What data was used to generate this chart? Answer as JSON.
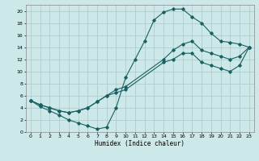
{
  "xlabel": "Humidex (Indice chaleur)",
  "bg_color": "#cce8e8",
  "grid_color": "#b0cccc",
  "line_color": "#1a6060",
  "xlim": [
    -0.5,
    23.5
  ],
  "ylim": [
    0,
    21
  ],
  "xticks": [
    0,
    1,
    2,
    3,
    4,
    5,
    6,
    7,
    8,
    9,
    10,
    11,
    12,
    13,
    14,
    15,
    16,
    17,
    18,
    19,
    20,
    21,
    22,
    23
  ],
  "yticks": [
    0,
    2,
    4,
    6,
    8,
    10,
    12,
    14,
    16,
    18,
    20
  ],
  "line1_x": [
    0,
    1,
    2,
    3,
    4,
    5,
    6,
    7,
    8,
    9,
    10,
    11,
    12,
    13,
    14,
    15,
    16,
    17,
    18,
    19,
    20,
    21,
    22,
    23
  ],
  "line1_y": [
    5.2,
    4.2,
    3.5,
    2.8,
    2.0,
    1.5,
    1.0,
    0.5,
    0.8,
    4.0,
    9.0,
    12.0,
    15.0,
    18.5,
    19.8,
    20.3,
    20.3,
    19.0,
    18.0,
    16.3,
    15.0,
    14.8,
    14.5,
    14.0
  ],
  "line2_x": [
    0,
    1,
    2,
    3,
    4,
    5,
    6,
    7,
    8,
    9,
    10,
    14,
    15,
    16,
    17,
    18,
    19,
    20,
    21,
    22,
    23
  ],
  "line2_y": [
    5.2,
    4.5,
    4.0,
    3.5,
    3.2,
    3.5,
    4.0,
    5.0,
    6.0,
    7.0,
    7.5,
    12.0,
    13.5,
    14.5,
    15.0,
    13.5,
    13.0,
    12.5,
    12.0,
    12.5,
    14.0
  ],
  "line3_x": [
    0,
    1,
    2,
    3,
    4,
    5,
    6,
    7,
    8,
    9,
    10,
    14,
    15,
    16,
    17,
    18,
    19,
    20,
    21,
    22,
    23
  ],
  "line3_y": [
    5.2,
    4.5,
    4.0,
    3.5,
    3.2,
    3.5,
    4.0,
    5.0,
    6.0,
    6.5,
    7.0,
    11.5,
    12.0,
    13.0,
    13.0,
    11.5,
    11.0,
    10.5,
    10.0,
    11.0,
    14.0
  ]
}
